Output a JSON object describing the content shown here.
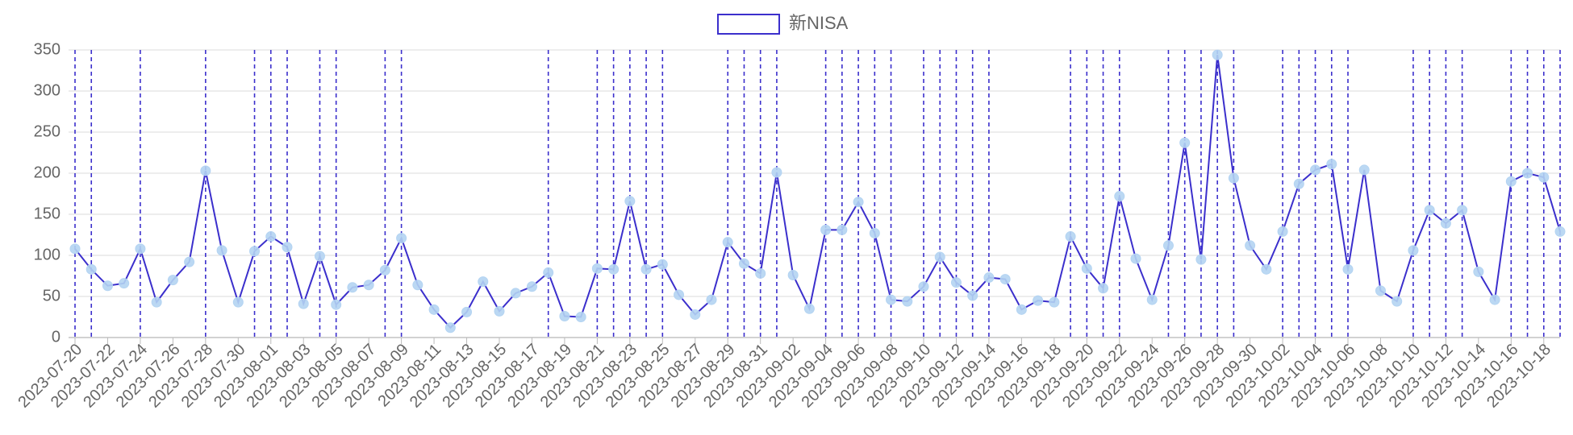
{
  "chart_data": {
    "type": "line",
    "categories": [
      "2023-07-20",
      null,
      "2023-07-22",
      null,
      "2023-07-24",
      null,
      "2023-07-26",
      null,
      "2023-07-28",
      null,
      "2023-07-30",
      null,
      "2023-08-01",
      null,
      "2023-08-03",
      null,
      "2023-08-05",
      null,
      "2023-08-07",
      null,
      "2023-08-09",
      null,
      "2023-08-11",
      null,
      "2023-08-13",
      null,
      "2023-08-15",
      null,
      "2023-08-17",
      null,
      "2023-08-19",
      null,
      "2023-08-21",
      null,
      "2023-08-23",
      null,
      "2023-08-25",
      null,
      "2023-08-27",
      null,
      "2023-08-29",
      null,
      "2023-08-31",
      null,
      "2023-09-02",
      null,
      "2023-09-04",
      null,
      "2023-09-06",
      null,
      "2023-09-08",
      null,
      "2023-09-10",
      null,
      "2023-09-12",
      null,
      "2023-09-14",
      null,
      "2023-09-16",
      null,
      "2023-09-18",
      null,
      "2023-09-20",
      null,
      "2023-09-22",
      null,
      "2023-09-24",
      null,
      "2023-09-26",
      null,
      "2023-09-28",
      null,
      "2023-09-30",
      null,
      "2023-10-02",
      null,
      "2023-10-04",
      null,
      "2023-10-06",
      null,
      "2023-10-08",
      null,
      "2023-10-10",
      null,
      "2023-10-12",
      null,
      "2023-10-14",
      null,
      "2023-10-16",
      null,
      "2023-10-18",
      null
    ],
    "series": [
      {
        "name": "新NISA",
        "color": "#3b2fcc",
        "point_color": "#b4d4f2",
        "values": [
          108,
          83,
          63,
          66,
          108,
          43,
          70,
          92,
          203,
          106,
          43,
          105,
          123,
          110,
          41,
          99,
          40,
          61,
          64,
          82,
          121,
          64,
          34,
          12,
          31,
          68,
          32,
          54,
          62,
          79,
          26,
          25,
          84,
          83,
          166,
          83,
          89,
          52,
          28,
          46,
          116,
          90,
          78,
          201,
          76,
          35,
          131,
          131,
          165,
          127,
          46,
          44,
          62,
          98,
          67,
          51,
          73,
          71,
          34,
          45,
          43,
          123,
          84,
          60,
          172,
          96,
          46,
          112,
          237,
          95,
          344,
          194,
          112,
          83,
          129,
          187,
          204,
          211,
          83,
          204,
          57,
          44,
          106,
          155,
          139,
          155,
          80,
          46,
          190,
          200,
          195,
          129
        ]
      }
    ],
    "highlight": [
      0,
      1,
      4,
      8,
      11,
      12,
      13,
      15,
      16,
      19,
      20,
      29,
      32,
      33,
      34,
      35,
      36,
      40,
      41,
      42,
      43,
      46,
      47,
      48,
      49,
      50,
      52,
      53,
      54,
      55,
      56,
      61,
      62,
      63,
      64,
      67,
      68,
      69,
      70,
      71,
      74,
      75,
      76,
      77,
      78,
      82,
      83,
      84,
      85,
      88,
      89,
      90,
      91
    ],
    "ylim": [
      0,
      350
    ],
    "yticks": [
      0,
      50,
      100,
      150,
      200,
      250,
      300,
      350
    ],
    "grid": true,
    "legend": "top"
  }
}
